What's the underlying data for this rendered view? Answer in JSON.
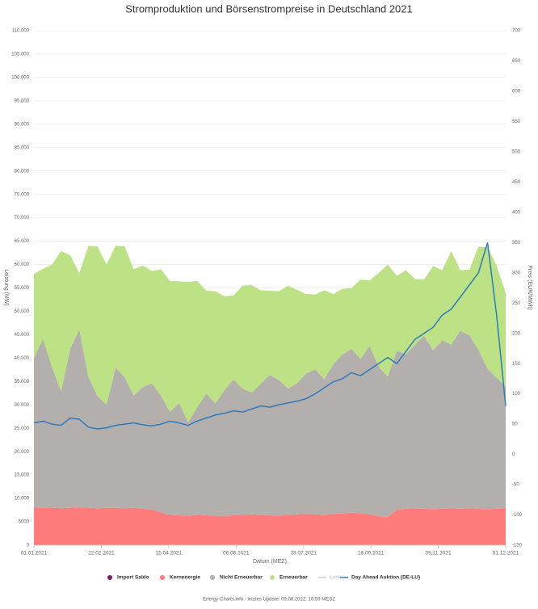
{
  "chart_data": {
    "type": "stacked-area-line",
    "title": "Stromproduktion und Börsenstrompreise in Deutschland 2021",
    "xlabel": "Datum (MEZ)",
    "ylabel": "Leistung (MW)",
    "y2label": "Preis (EUR/MWh)",
    "footer": "Energy-Charts.info - letztes Update: 09.08.2022, 16:59 MESZ",
    "x": [
      "01.01.2021",
      "08.01.2021",
      "15.01.2021",
      "22.01.2021",
      "29.01.2021",
      "05.02.2021",
      "12.02.2021",
      "19.02.2021",
      "26.02.2021",
      "05.03.2021",
      "12.03.2021",
      "19.03.2021",
      "26.03.2021",
      "02.04.2021",
      "09.04.2021",
      "16.04.2021",
      "23.04.2021",
      "30.04.2021",
      "07.05.2021",
      "14.05.2021",
      "21.05.2021",
      "28.05.2021",
      "04.06.2021",
      "11.06.2021",
      "18.06.2021",
      "25.06.2021",
      "02.07.2021",
      "09.07.2021",
      "16.07.2021",
      "23.07.2021",
      "30.07.2021",
      "06.08.2021",
      "13.08.2021",
      "20.08.2021",
      "27.08.2021",
      "03.09.2021",
      "10.09.2021",
      "17.09.2021",
      "24.09.2021",
      "01.10.2021",
      "08.10.2021",
      "15.10.2021",
      "22.10.2021",
      "29.10.2021",
      "05.11.2021",
      "12.11.2021",
      "19.11.2021",
      "26.11.2021",
      "03.12.2021",
      "10.12.2021",
      "17.12.2021",
      "24.12.2021",
      "31.12.2021"
    ],
    "xticks": [
      "01.01.2021",
      "22.02.2021",
      "15.04.2021",
      "06.06.2021",
      "28.07.2021",
      "18.09.2021",
      "09.11.2021",
      "31.12.2021"
    ],
    "ylim": [
      0,
      110000
    ],
    "yticks": [
      0,
      5000,
      {
        "value": 10000,
        "label": "10.000"
      },
      {
        "value": 15000,
        "label": "15.000"
      },
      {
        "value": 20000,
        "label": "20.000"
      },
      {
        "value": 25000,
        "label": "25.000"
      },
      {
        "value": 30000,
        "label": "30.000"
      },
      {
        "value": 35000,
        "label": "35.000"
      },
      {
        "value": 40000,
        "label": "40.000"
      },
      {
        "value": 45000,
        "label": "45.000"
      },
      {
        "value": 50000,
        "label": "50.000"
      },
      {
        "value": 55000,
        "label": "55.000"
      },
      {
        "value": 60000,
        "label": "60.000"
      },
      {
        "value": 65000,
        "label": "65.000"
      },
      {
        "value": 70000,
        "label": "70.000"
      },
      {
        "value": 75000,
        "label": "75.000"
      },
      {
        "value": 80000,
        "label": "80.000"
      },
      {
        "value": 85000,
        "label": "85.000"
      },
      {
        "value": 90000,
        "label": "90.000"
      },
      {
        "value": 95000,
        "label": "95.000"
      },
      {
        "value": 100000,
        "label": "100.000"
      },
      {
        "value": 105000,
        "label": "105.000"
      },
      {
        "value": 110000,
        "label": "110.000"
      }
    ],
    "y2lim": [
      -150,
      700
    ],
    "y2ticks": [
      -150,
      -100,
      -50,
      0,
      50,
      100,
      150,
      200,
      250,
      300,
      350,
      400,
      450,
      500,
      550,
      600,
      650,
      700
    ],
    "grid": true,
    "series": [
      {
        "name": "Import Saldo",
        "color": "#7b1a74"
      },
      {
        "name": "Kernenergie",
        "color": "#ff7c7c",
        "stack": true,
        "values": [
          8000,
          8100,
          8000,
          7900,
          8000,
          8100,
          8000,
          7900,
          8000,
          8000,
          7900,
          8000,
          7800,
          7600,
          7000,
          6500,
          6400,
          6300,
          6500,
          6400,
          6300,
          6200,
          6400,
          6500,
          6600,
          6500,
          6400,
          6300,
          6500,
          6600,
          6700,
          6600,
          6500,
          6700,
          6800,
          7000,
          6800,
          6600,
          6200,
          6000,
          7600,
          7800,
          7900,
          7800,
          7700,
          7800,
          7900,
          7800,
          7900,
          7800,
          7700,
          7800,
          7900
        ]
      },
      {
        "name": "Nicht Erneuerbar",
        "color": "#b3afac",
        "stack": true,
        "values": [
          32000,
          36000,
          30000,
          25000,
          34000,
          38000,
          28000,
          24000,
          22000,
          30000,
          28000,
          24000,
          26000,
          27000,
          25000,
          22000,
          24000,
          20000,
          23000,
          26000,
          24000,
          27000,
          29000,
          27000,
          26000,
          28000,
          30000,
          29000,
          27000,
          28000,
          30000,
          31000,
          29000,
          32000,
          34000,
          35000,
          33000,
          36000,
          32000,
          30000,
          34000,
          33000,
          35000,
          37000,
          34000,
          36000,
          35000,
          38000,
          37000,
          34000,
          30000,
          28000,
          26000
        ]
      },
      {
        "name": "Erneuerbar",
        "color": "#bde285",
        "stack": true,
        "values": [
          18000,
          15000,
          22000,
          30000,
          20000,
          12000,
          28000,
          32000,
          30000,
          26000,
          28000,
          27000,
          26000,
          24000,
          27000,
          28000,
          26000,
          30000,
          27000,
          22000,
          24000,
          20000,
          18000,
          22000,
          23000,
          20000,
          18000,
          19000,
          22000,
          20000,
          17000,
          16000,
          19000,
          15000,
          14000,
          13000,
          17000,
          14000,
          20000,
          24000,
          16000,
          18000,
          14000,
          12000,
          18000,
          15000,
          20000,
          13000,
          14000,
          22000,
          26000,
          24000,
          20000
        ]
      },
      {
        "name": "Last",
        "color": "#cccccc",
        "visible": false
      },
      {
        "name": "Day Ahead Auktion (DE-LU)",
        "color": "#2f7bbd",
        "axis": "y2",
        "values": [
          52,
          55,
          50,
          48,
          60,
          58,
          45,
          42,
          44,
          48,
          50,
          52,
          49,
          47,
          50,
          55,
          52,
          48,
          55,
          60,
          65,
          68,
          72,
          70,
          75,
          80,
          78,
          82,
          85,
          88,
          92,
          100,
          110,
          120,
          125,
          135,
          130,
          140,
          150,
          160,
          150,
          170,
          190,
          200,
          210,
          230,
          240,
          260,
          280,
          300,
          350,
          230,
          80
        ]
      }
    ]
  }
}
